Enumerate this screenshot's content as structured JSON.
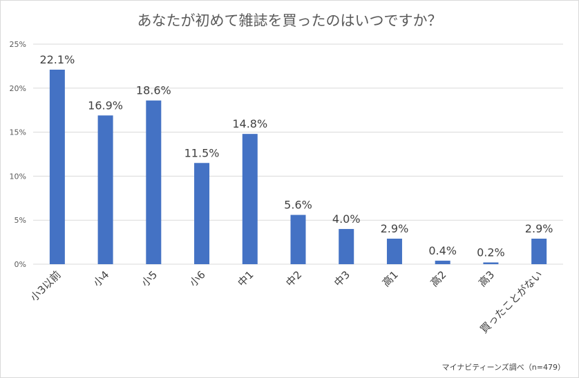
{
  "chart_data": {
    "type": "bar",
    "title": "あなたが初めて雑誌を買ったのはいつですか？",
    "categories": [
      "小3以前",
      "小4",
      "小5",
      "小6",
      "中1",
      "中2",
      "中3",
      "高1",
      "高2",
      "高3",
      "買ったことがない"
    ],
    "values": [
      22.1,
      16.9,
      18.6,
      11.5,
      14.8,
      5.6,
      4.0,
      2.9,
      0.4,
      0.2,
      2.9
    ],
    "data_labels": [
      "22.1%",
      "16.9%",
      "18.6%",
      "11.5%",
      "14.8%",
      "5.6%",
      "4.0%",
      "2.9%",
      "0.4%",
      "0.2%",
      "2.9%"
    ],
    "yticks": [
      0,
      5,
      10,
      15,
      20,
      25
    ],
    "ytick_labels": [
      "0%",
      "5%",
      "10%",
      "15%",
      "20%",
      "25%"
    ],
    "ylim": [
      0,
      25
    ],
    "xlabel": "",
    "ylabel": "",
    "grid": true,
    "legend": "none",
    "bar_color": "#4472c4",
    "source": "マイナビティーンズ調べ（n=479）"
  }
}
